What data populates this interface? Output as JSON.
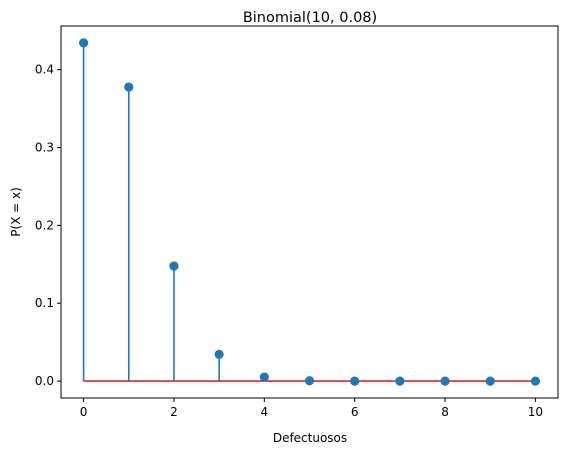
{
  "chart_data": {
    "type": "stem",
    "title": "Binomial(10, 0.08)",
    "xlabel": "Defectuosos",
    "ylabel": "P(X = x)",
    "x": [
      0,
      1,
      2,
      3,
      4,
      5,
      6,
      7,
      8,
      9,
      10
    ],
    "values": [
      0.4344,
      0.3777,
      0.1478,
      0.0343,
      0.0052,
      0.0005,
      0.0,
      0.0,
      0.0,
      0.0,
      0.0
    ],
    "xlim": [
      -0.5,
      10.5
    ],
    "ylim": [
      -0.0217,
      0.4561
    ],
    "xticks": [
      "0",
      "2",
      "4",
      "6",
      "8",
      "10"
    ],
    "yticks": [
      "0.0",
      "0.1",
      "0.2",
      "0.3",
      "0.4"
    ],
    "grid": false,
    "colors": {
      "stem": "#1f77b4",
      "marker": "#1f77b4",
      "baseline": "#d62728"
    }
  }
}
